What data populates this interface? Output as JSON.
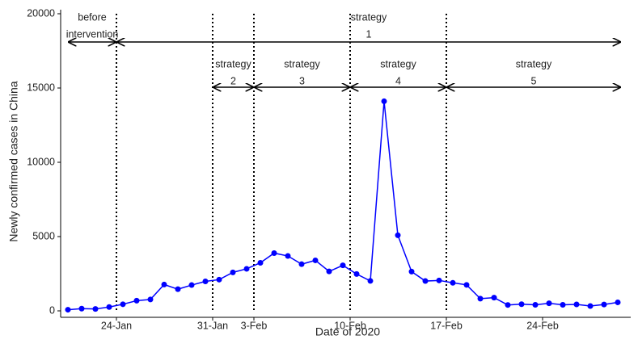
{
  "chart_data": {
    "type": "line",
    "xlabel": "Date of 2020",
    "ylabel": "Newly confirmed cases in China",
    "categories": [
      null,
      null,
      null,
      null,
      "24-Jan",
      null,
      null,
      null,
      null,
      null,
      null,
      "31-Jan",
      null,
      null,
      "3-Feb",
      null,
      null,
      null,
      null,
      null,
      null,
      "10-Feb",
      null,
      null,
      null,
      null,
      null,
      null,
      "17-Feb",
      null,
      null,
      null,
      null,
      null,
      null,
      "24-Feb",
      null,
      null,
      null,
      null,
      null
    ],
    "series": [
      {
        "name": "Newly confirmed cases",
        "color": "#0000ff",
        "values": [
          77,
          149,
          131,
          259,
          444,
          688,
          769,
          1771,
          1459,
          1737,
          1982,
          2102,
          2590,
          2829,
          3235,
          3887,
          3694,
          3143,
          3399,
          2656,
          3062,
          2478,
          2015,
          14108,
          5090,
          2641,
          2008,
          2048,
          1886,
          1749,
          820,
          889,
          397,
          450,
          409,
          508,
          406,
          433,
          327,
          427,
          573
        ]
      }
    ],
    "ylim": [
      0,
      20000
    ],
    "yticks": [
      0,
      5000,
      10000,
      15000,
      20000
    ],
    "annotations": [
      {
        "lines": [
          "before",
          "intervention"
        ]
      },
      {
        "lines": [
          "strategy",
          "1"
        ]
      },
      {
        "lines": [
          "strategy",
          "2"
        ]
      },
      {
        "lines": [
          "strategy",
          "3"
        ]
      },
      {
        "lines": [
          "strategy",
          "4"
        ]
      },
      {
        "lines": [
          "strategy",
          "5"
        ]
      }
    ]
  }
}
